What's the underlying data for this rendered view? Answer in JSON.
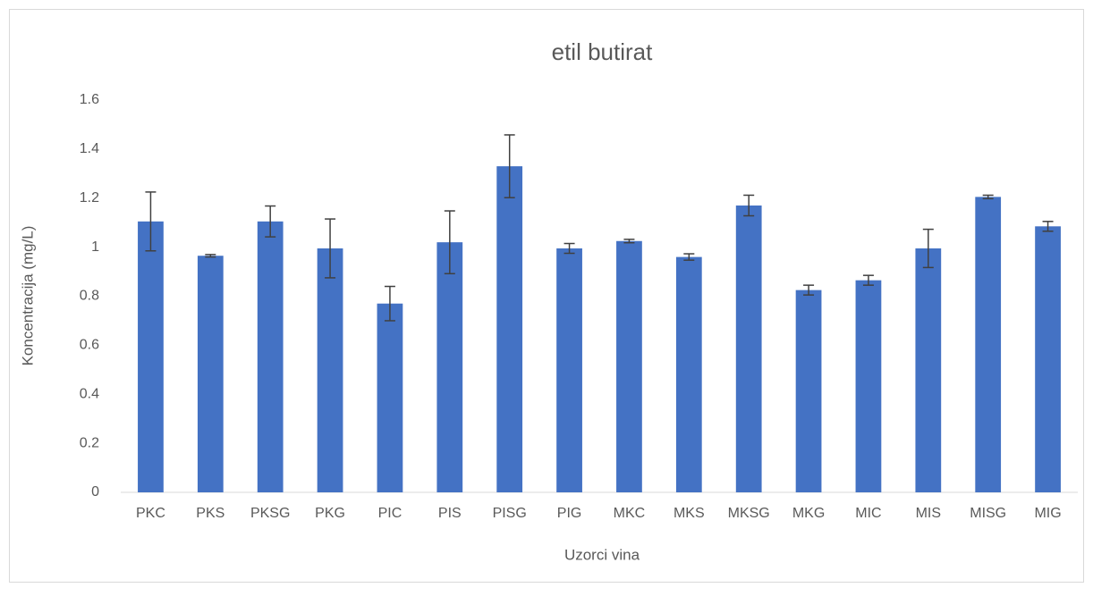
{
  "chart_data": {
    "type": "bar",
    "title": "etil butirat",
    "x_label": "Uzorci vina",
    "y_label": "Koncentracija (mg/L)",
    "categories": [
      "PKC",
      "PKS",
      "PKSG",
      "PKG",
      "PIC",
      "PIS",
      "PISG",
      "PIG",
      "MKC",
      "MKS",
      "MKSG",
      "MKG",
      "MIC",
      "MIS",
      "MISG",
      "MIG"
    ],
    "values": [
      1.105,
      0.965,
      1.105,
      0.995,
      0.77,
      1.02,
      1.33,
      0.995,
      1.025,
      0.96,
      1.17,
      0.825,
      0.865,
      0.995,
      1.205,
      1.085
    ],
    "errors": [
      0.12,
      0.005,
      0.063,
      0.12,
      0.07,
      0.128,
      0.128,
      0.02,
      0.007,
      0.013,
      0.042,
      0.02,
      0.02,
      0.078,
      0.007,
      0.02
    ],
    "color": "#4472c4",
    "ylim": [
      0,
      1.6
    ],
    "yticks": [
      0,
      0.2,
      0.4,
      0.6,
      0.8,
      1,
      1.2,
      1.4,
      1.6
    ],
    "grid": false
  }
}
